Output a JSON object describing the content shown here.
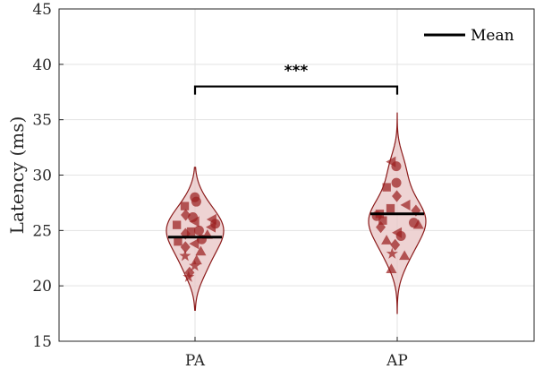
{
  "chart_data": {
    "type": "violin",
    "ylabel": "Latency (ms)",
    "ylim": [
      15,
      45
    ],
    "yticks": [
      15,
      20,
      25,
      30,
      35,
      40,
      45
    ],
    "categories": [
      "PA",
      "AP"
    ],
    "grid": true,
    "legend": {
      "label": "Mean",
      "placement": "top-right"
    },
    "significance": {
      "label": "***",
      "between": [
        "PA",
        "AP"
      ],
      "y": 38
    },
    "colors": {
      "violin_fill": "#e8c4c4",
      "violin_edge": "#8b1a1a",
      "points": "#9b2020",
      "mean_line": "#000000"
    },
    "series": [
      {
        "category": "PA",
        "mean": 24.4,
        "range": [
          17.8,
          30.7
        ],
        "points": [
          {
            "y": 28.0,
            "m": "circle"
          },
          {
            "y": 27.6,
            "m": "circle"
          },
          {
            "y": 27.2,
            "m": "square"
          },
          {
            "y": 26.4,
            "m": "diamond"
          },
          {
            "y": 26.2,
            "m": "circle"
          },
          {
            "y": 25.8,
            "m": "triangle-left"
          },
          {
            "y": 25.5,
            "m": "square"
          },
          {
            "y": 25.3,
            "m": "triangle-left"
          },
          {
            "y": 25.0,
            "m": "circle"
          },
          {
            "y": 24.9,
            "m": "square"
          },
          {
            "y": 24.7,
            "m": "diamond"
          },
          {
            "y": 24.6,
            "m": "triangle"
          },
          {
            "y": 24.2,
            "m": "circle"
          },
          {
            "y": 24.0,
            "m": "square"
          },
          {
            "y": 23.8,
            "m": "triangle-left"
          },
          {
            "y": 23.5,
            "m": "diamond"
          },
          {
            "y": 23.1,
            "m": "triangle"
          },
          {
            "y": 22.7,
            "m": "star"
          },
          {
            "y": 22.3,
            "m": "triangle"
          },
          {
            "y": 21.8,
            "m": "star"
          },
          {
            "y": 21.2,
            "m": "diamond"
          },
          {
            "y": 20.8,
            "m": "star"
          },
          {
            "y": 26.0,
            "m": "triangle-left"
          },
          {
            "y": 25.6,
            "m": "circle"
          }
        ]
      },
      {
        "category": "AP",
        "mean": 26.5,
        "range": [
          17.5,
          35.6
        ],
        "points": [
          {
            "y": 31.2,
            "m": "triangle-left"
          },
          {
            "y": 30.8,
            "m": "circle"
          },
          {
            "y": 29.3,
            "m": "circle"
          },
          {
            "y": 28.9,
            "m": "square"
          },
          {
            "y": 27.3,
            "m": "triangle-left"
          },
          {
            "y": 27.0,
            "m": "square"
          },
          {
            "y": 26.8,
            "m": "diamond"
          },
          {
            "y": 26.5,
            "m": "square"
          },
          {
            "y": 26.3,
            "m": "circle"
          },
          {
            "y": 25.9,
            "m": "square"
          },
          {
            "y": 25.7,
            "m": "circle"
          },
          {
            "y": 25.5,
            "m": "triangle"
          },
          {
            "y": 25.3,
            "m": "diamond"
          },
          {
            "y": 24.8,
            "m": "triangle-left"
          },
          {
            "y": 24.5,
            "m": "circle"
          },
          {
            "y": 24.1,
            "m": "triangle"
          },
          {
            "y": 23.7,
            "m": "diamond"
          },
          {
            "y": 22.9,
            "m": "star"
          },
          {
            "y": 22.7,
            "m": "triangle"
          },
          {
            "y": 21.5,
            "m": "triangle"
          },
          {
            "y": 28.1,
            "m": "diamond"
          }
        ]
      }
    ]
  }
}
